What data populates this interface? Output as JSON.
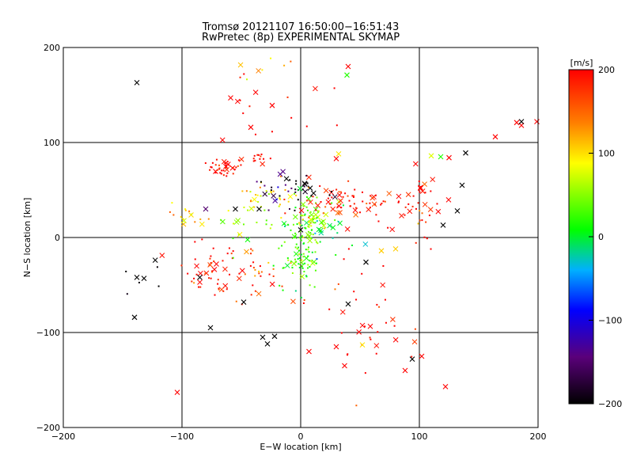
{
  "chart_data": {
    "type": "scatter",
    "title": "Tromsø 20121107 16:50:00−16:51:43",
    "subtitle": "RwPretec (8p) EXPERIMENTAL SKYMAP",
    "xlabel": "E−W location [km]",
    "ylabel": "N−S location [km]",
    "xlim": [
      -200,
      200
    ],
    "ylim": [
      -200,
      200
    ],
    "x_ticks": [
      -200,
      -100,
      0,
      100,
      200
    ],
    "y_ticks": [
      -200,
      -100,
      0,
      100,
      200
    ],
    "grid": true,
    "colorbar": {
      "label": "[m/s]",
      "range": [
        -200,
        200
      ],
      "ticks": [
        200,
        100,
        0,
        -100,
        -200
      ],
      "colors": [
        "#000000",
        "#5a007a",
        "#0000ff",
        "#00b0ff",
        "#00ff00",
        "#ffff00",
        "#ff8000",
        "#ff0000"
      ]
    },
    "point_groups": [
      {
        "center": [
          -62,
          75
        ],
        "spread": [
          8,
          5
        ],
        "count": 40,
        "velocity": 200
      },
      {
        "center": [
          -36,
          83
        ],
        "spread": [
          4,
          3
        ],
        "count": 12,
        "velocity": 200
      },
      {
        "center": [
          -75,
          -35
        ],
        "spread": [
          12,
          14
        ],
        "count": 50,
        "velocity": 190
      },
      {
        "center": [
          -35,
          -38
        ],
        "spread": [
          14,
          14
        ],
        "count": 30,
        "velocity": 170
      },
      {
        "center": [
          -30,
          38
        ],
        "spread": [
          14,
          12
        ],
        "count": 35,
        "velocity": 100
      },
      {
        "center": [
          -20,
          48
        ],
        "spread": [
          10,
          8
        ],
        "count": 14,
        "velocity": -150
      },
      {
        "center": [
          0,
          -10
        ],
        "spread": [
          9,
          22
        ],
        "count": 120,
        "velocity": 30
      },
      {
        "center": [
          8,
          20
        ],
        "spread": [
          10,
          12
        ],
        "count": 35,
        "velocity": 60
      },
      {
        "center": [
          40,
          38
        ],
        "spread": [
          25,
          10
        ],
        "count": 70,
        "velocity": 190
      },
      {
        "center": [
          100,
          35
        ],
        "spread": [
          12,
          18
        ],
        "count": 40,
        "velocity": 200
      },
      {
        "center": [
          -95,
          25
        ],
        "spread": [
          8,
          6
        ],
        "count": 15,
        "velocity": 110
      },
      {
        "center": [
          0,
          48
        ],
        "spread": [
          15,
          8
        ],
        "count": 25,
        "velocity": -200
      },
      {
        "center": [
          50,
          -80
        ],
        "spread": [
          20,
          30
        ],
        "count": 25,
        "velocity": 200
      },
      {
        "center": [
          80,
          -110
        ],
        "spread": [
          25,
          15
        ],
        "count": 12,
        "velocity": 200
      },
      {
        "center": [
          -20,
          150
        ],
        "spread": [
          30,
          25
        ],
        "count": 18,
        "velocity": 200
      },
      {
        "center": [
          -40,
          180
        ],
        "spread": [
          20,
          10
        ],
        "count": 6,
        "velocity": 110
      },
      {
        "center": [
          -130,
          -40
        ],
        "spread": [
          10,
          10
        ],
        "count": 6,
        "velocity": -200
      },
      {
        "center": [
          25,
          10
        ],
        "spread": [
          18,
          10
        ],
        "count": 20,
        "velocity": 0
      },
      {
        "center": [
          -50,
          10
        ],
        "spread": [
          15,
          10
        ],
        "count": 15,
        "velocity": 50
      }
    ],
    "marked_points": [
      {
        "x": -138,
        "y": 163,
        "v": -200
      },
      {
        "x": -140,
        "y": -84,
        "v": -200
      },
      {
        "x": -138,
        "y": -42,
        "v": -200
      },
      {
        "x": -132,
        "y": -43,
        "v": -200
      },
      {
        "x": -104,
        "y": -163,
        "v": 200
      },
      {
        "x": -76,
        "y": -95,
        "v": -200
      },
      {
        "x": -32,
        "y": -105,
        "v": -200
      },
      {
        "x": -28,
        "y": -112,
        "v": -200
      },
      {
        "x": -22,
        "y": -104,
        "v": -200
      },
      {
        "x": 7,
        "y": -120,
        "v": 200
      },
      {
        "x": 30,
        "y": -115,
        "v": 200
      },
      {
        "x": 37,
        "y": -135,
        "v": 200
      },
      {
        "x": 52,
        "y": -113,
        "v": 100
      },
      {
        "x": 88,
        "y": -140,
        "v": 200
      },
      {
        "x": 94,
        "y": -128,
        "v": -200
      },
      {
        "x": 102,
        "y": -125,
        "v": 200
      },
      {
        "x": 122,
        "y": -157,
        "v": 200
      },
      {
        "x": 40,
        "y": 180,
        "v": 200
      },
      {
        "x": 39,
        "y": 171,
        "v": 20
      },
      {
        "x": -24,
        "y": 139,
        "v": 200
      },
      {
        "x": -59,
        "y": 147,
        "v": 200
      },
      {
        "x": -42,
        "y": 116,
        "v": 200
      },
      {
        "x": 164,
        "y": 106,
        "v": 200
      },
      {
        "x": 182,
        "y": 121,
        "v": 200
      },
      {
        "x": 186,
        "y": 118,
        "v": 200
      },
      {
        "x": 186,
        "y": 122,
        "v": -200
      },
      {
        "x": 199,
        "y": 122,
        "v": 200
      },
      {
        "x": 139,
        "y": 89,
        "v": -200
      },
      {
        "x": 136,
        "y": 55,
        "v": -200
      },
      {
        "x": 132,
        "y": 28,
        "v": -200
      },
      {
        "x": 120,
        "y": 13,
        "v": -200
      },
      {
        "x": 118,
        "y": 85,
        "v": 20
      },
      {
        "x": 110,
        "y": 86,
        "v": 80
      },
      {
        "x": 125,
        "y": 84,
        "v": 200
      },
      {
        "x": 55,
        "y": -26,
        "v": -200
      },
      {
        "x": 68,
        "y": -14,
        "v": 110
      },
      {
        "x": 80,
        "y": -12,
        "v": 110
      },
      {
        "x": 40,
        "y": -70,
        "v": -200
      },
      {
        "x": -85,
        "y": -42,
        "v": -200
      },
      {
        "x": -48,
        "y": -68,
        "v": -200
      },
      {
        "x": -35,
        "y": 30,
        "v": -200
      },
      {
        "x": -55,
        "y": 30,
        "v": -200
      },
      {
        "x": -80,
        "y": 30,
        "v": -150
      },
      {
        "x": 0,
        "y": 8,
        "v": -200
      },
      {
        "x": 8,
        "y": 52,
        "v": -200
      },
      {
        "x": 32,
        "y": 88,
        "v": 100
      },
      {
        "x": 30,
        "y": 83,
        "v": 200
      }
    ]
  }
}
